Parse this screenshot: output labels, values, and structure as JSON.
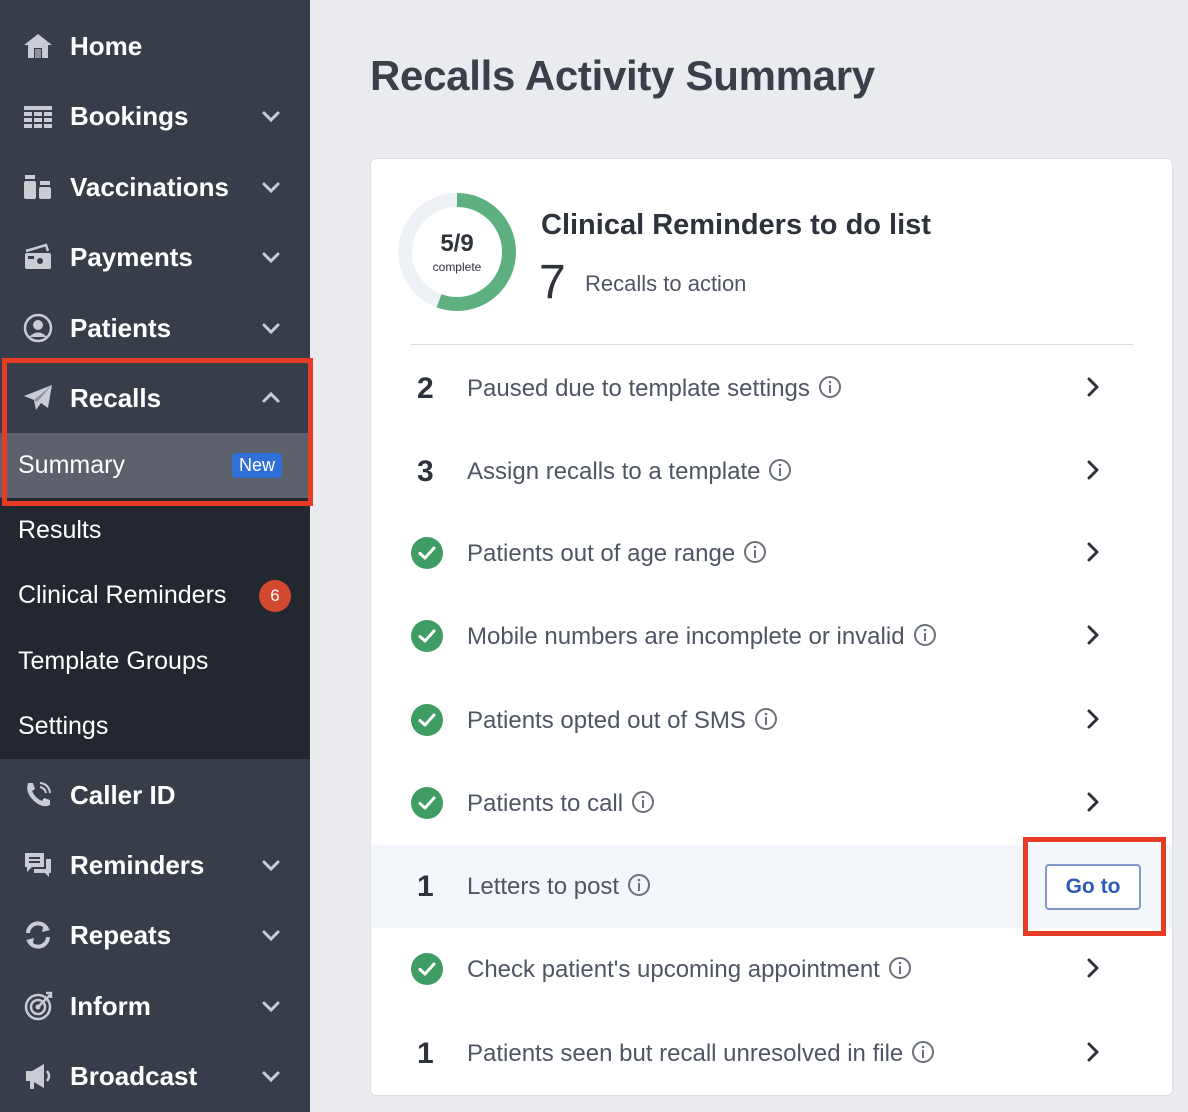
{
  "sidebar": {
    "nav": [
      {
        "label": "Home",
        "icon": "home-icon",
        "has_chevron": false
      },
      {
        "label": "Bookings",
        "icon": "table-icon",
        "has_chevron": true
      },
      {
        "label": "Vaccinations",
        "icon": "vaccine-icon",
        "has_chevron": true
      },
      {
        "label": "Payments",
        "icon": "payments-icon",
        "has_chevron": true
      },
      {
        "label": "Patients",
        "icon": "patient-icon",
        "has_chevron": true
      },
      {
        "label": "Recalls",
        "icon": "paper-plane-icon",
        "has_chevron": true,
        "expanded": true
      }
    ],
    "recalls_sub": [
      {
        "label": "Summary",
        "badge": "New",
        "active": true
      },
      {
        "label": "Results"
      },
      {
        "label": "Clinical Reminders",
        "count": "6"
      },
      {
        "label": "Template Groups"
      },
      {
        "label": "Settings"
      }
    ],
    "nav_bottom": [
      {
        "label": "Caller ID",
        "icon": "phone-icon",
        "has_chevron": false
      },
      {
        "label": "Reminders",
        "icon": "chat-icon",
        "has_chevron": true
      },
      {
        "label": "Repeats",
        "icon": "repeat-icon",
        "has_chevron": true
      },
      {
        "label": "Inform",
        "icon": "target-icon",
        "has_chevron": true
      },
      {
        "label": "Broadcast",
        "icon": "megaphone-icon",
        "has_chevron": true
      }
    ],
    "colors": {
      "bg": "#373d49",
      "sub_bg": "#23272f",
      "active_bg": "#5c616b",
      "highlight": "#e63b25"
    }
  },
  "main": {
    "title": "Recalls Activity Summary",
    "card": {
      "progress": {
        "fraction": "5/9",
        "label": "complete",
        "completed": 5,
        "total": 9,
        "color": "#5fb07f"
      },
      "title": "Clinical Reminders to do list",
      "recall_count": "7",
      "recall_count_label": "Recalls to action",
      "rows": [
        {
          "status": "number",
          "value": "2",
          "label": "Paused due to template settings"
        },
        {
          "status": "number",
          "value": "3",
          "label": "Assign recalls to a template"
        },
        {
          "status": "done",
          "label": "Patients out of age range"
        },
        {
          "status": "done",
          "label": "Mobile numbers are incomplete or invalid"
        },
        {
          "status": "done",
          "label": "Patients opted out of SMS"
        },
        {
          "status": "done",
          "label": "Patients to call"
        },
        {
          "status": "number",
          "value": "1",
          "label": "Letters to post",
          "action": "Go to",
          "highlighted": true
        },
        {
          "status": "done",
          "label": "Check patient's upcoming appointment"
        },
        {
          "status": "number",
          "value": "1",
          "label": "Patients seen but recall unresolved in file"
        }
      ]
    }
  }
}
